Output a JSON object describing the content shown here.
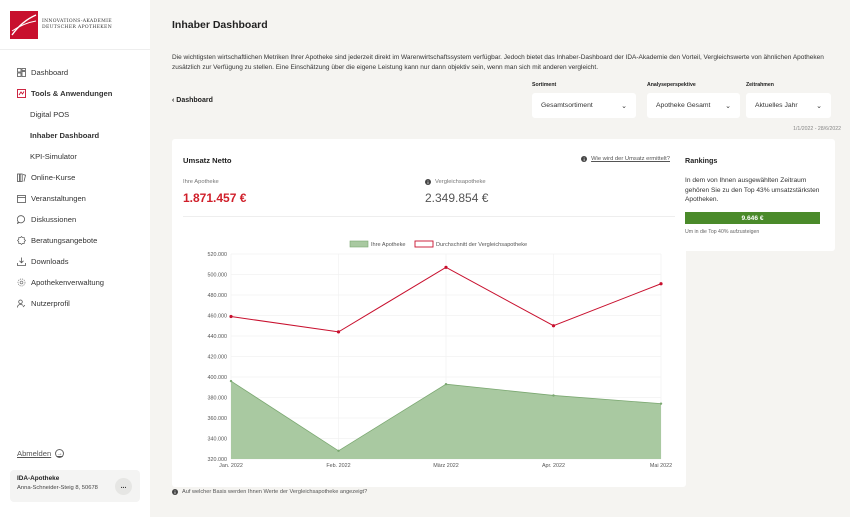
{
  "brand": {
    "line1": "INNOVATIONS-AKADEMIE",
    "line2": "DEUTSCHER APOTHEKEN",
    "accent": "#c8102e"
  },
  "sidebar": {
    "items": [
      {
        "label": "Dashboard",
        "icon": "dashboard-icon"
      },
      {
        "label": "Tools & Anwendungen",
        "icon": "tools-icon"
      },
      {
        "label": "Digital POS"
      },
      {
        "label": "Inhaber Dashboard"
      },
      {
        "label": "KPI-Simulator"
      },
      {
        "label": "Online-Kurse",
        "icon": "books-icon"
      },
      {
        "label": "Veranstaltungen",
        "icon": "calendar-icon"
      },
      {
        "label": "Diskussionen",
        "icon": "chat-bubble-icon"
      },
      {
        "label": "Beratungsangebote",
        "icon": "badge-icon"
      },
      {
        "label": "Downloads",
        "icon": "download-icon"
      },
      {
        "label": "Apothekenverwaltung",
        "icon": "gear-icon"
      },
      {
        "label": "Nutzerprofil",
        "icon": "user-icon"
      }
    ],
    "logout": "Abmelden",
    "pharmacy": {
      "name": "IDA-Apotheke",
      "address": "Anna-Schneider-Steig 8, 50678",
      "more": "..."
    }
  },
  "page": {
    "title": "Inhaber Dashboard",
    "intro": "Die wichtigsten wirtschaftlichen Metriken Ihrer Apotheke sind jederzeit direkt im Warenwirtschaftssystem verfügbar. Jedoch bietet das Inhaber-Dashboard der IDA-Akademie den Vorteil, Vergleichswerte von ähnlichen Apotheken zusätzlich zur Verfügung zu stellen. Eine Einschätzung über die eigene Leistung kann nur dann objektiv sein, wenn man sich mit anderen vergleicht.",
    "back": "Dashboard",
    "date_range": "1/1/2022 - 28/6/2022",
    "footnote": "Auf welcher Basis werden Ihnen Werte der Vergleichsapotheke angezeigt?"
  },
  "filters": {
    "sortiment": {
      "label": "Sortiment",
      "value": "Gesamtsortiment"
    },
    "perspektive": {
      "label": "Analyseperspektive",
      "value": "Apotheke Gesamt"
    },
    "zeitrahmen": {
      "label": "Zeitrahmen",
      "value": "Aktuelles Jahr"
    }
  },
  "umsatz": {
    "title": "Umsatz Netto",
    "help_link": "Wie wird der Umsatz ermittelt?",
    "own_label": "Ihre Apotheke",
    "own_value": "1.871.457 €",
    "cmp_label": "Vergleichsapotheke",
    "cmp_value": "2.349.854 €"
  },
  "rankings": {
    "title": "Rankings",
    "description": "In dem von Ihnen ausgewählten Zeitraum gehören Sie zu den Top 43% umsatzstärksten Apotheken.",
    "bar_value": "9.646 €",
    "hint": "Um in die Top 40% aufzusteigen"
  },
  "chart_data": {
    "type": "line",
    "categories": [
      "Jan. 2022",
      "Feb. 2022",
      "März 2022",
      "Apr. 2022",
      "Mai 2022"
    ],
    "series": [
      {
        "name": "Ihre Apotheke",
        "values": [
          396000,
          328000,
          393000,
          382000,
          374000
        ],
        "style": "area",
        "color": "#a9c9a1"
      },
      {
        "name": "Durchschnitt der Vergleichsapotheke",
        "values": [
          459000,
          444000,
          507000,
          450000,
          491000
        ],
        "style": "line",
        "color": "#c8102e"
      }
    ],
    "ylim": [
      320000,
      520000
    ],
    "yticks": [
      "320.000",
      "340.000",
      "360.000",
      "380.000",
      "400.000",
      "420.000",
      "440.000",
      "460.000",
      "480.000",
      "500.000",
      "520.000"
    ],
    "grid": true,
    "legend": "top-center"
  }
}
